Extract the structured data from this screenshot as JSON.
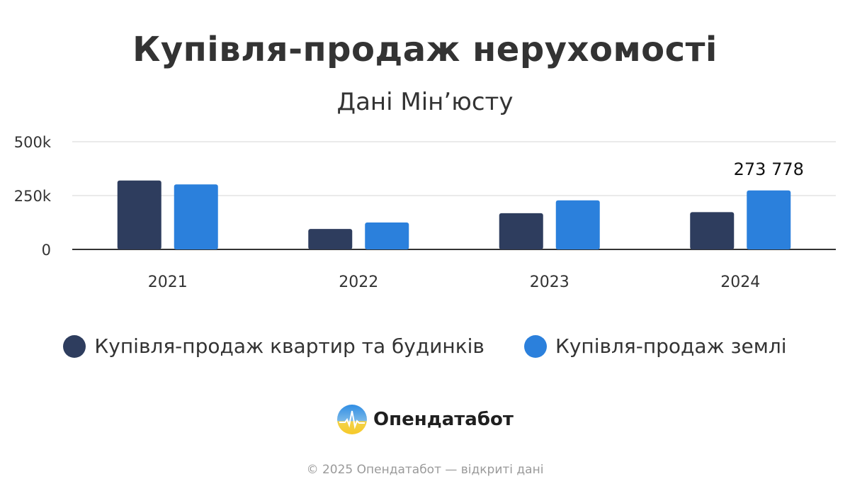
{
  "title": "Купівля-продаж нерухомості",
  "subtitle": "Дані Мін’юсту",
  "chart_data": {
    "type": "bar",
    "categories": [
      "2021",
      "2022",
      "2023",
      "2024"
    ],
    "series": [
      {
        "name": "Купівля-продаж квартир та будинків",
        "color": "#2e3d5e",
        "values": [
          320000,
          95000,
          168000,
          173000
        ]
      },
      {
        "name": "Купівля-продаж землі",
        "color": "#2b80dc",
        "values": [
          302000,
          125000,
          228000,
          273778
        ]
      }
    ],
    "yticks": [
      0,
      250000,
      500000
    ],
    "ytick_labels": [
      "0",
      "250k",
      "500k"
    ],
    "ylim": [
      0,
      500000
    ],
    "grid": true,
    "data_labels": [
      {
        "series": 1,
        "index": 3,
        "text": "273 778"
      }
    ],
    "legend_position": "bottom"
  },
  "brand": {
    "name": "Опендатабот",
    "logo_icon": "opendatabot-logo-icon"
  },
  "footer": "© 2025 Опендатабот — відкриті дані"
}
